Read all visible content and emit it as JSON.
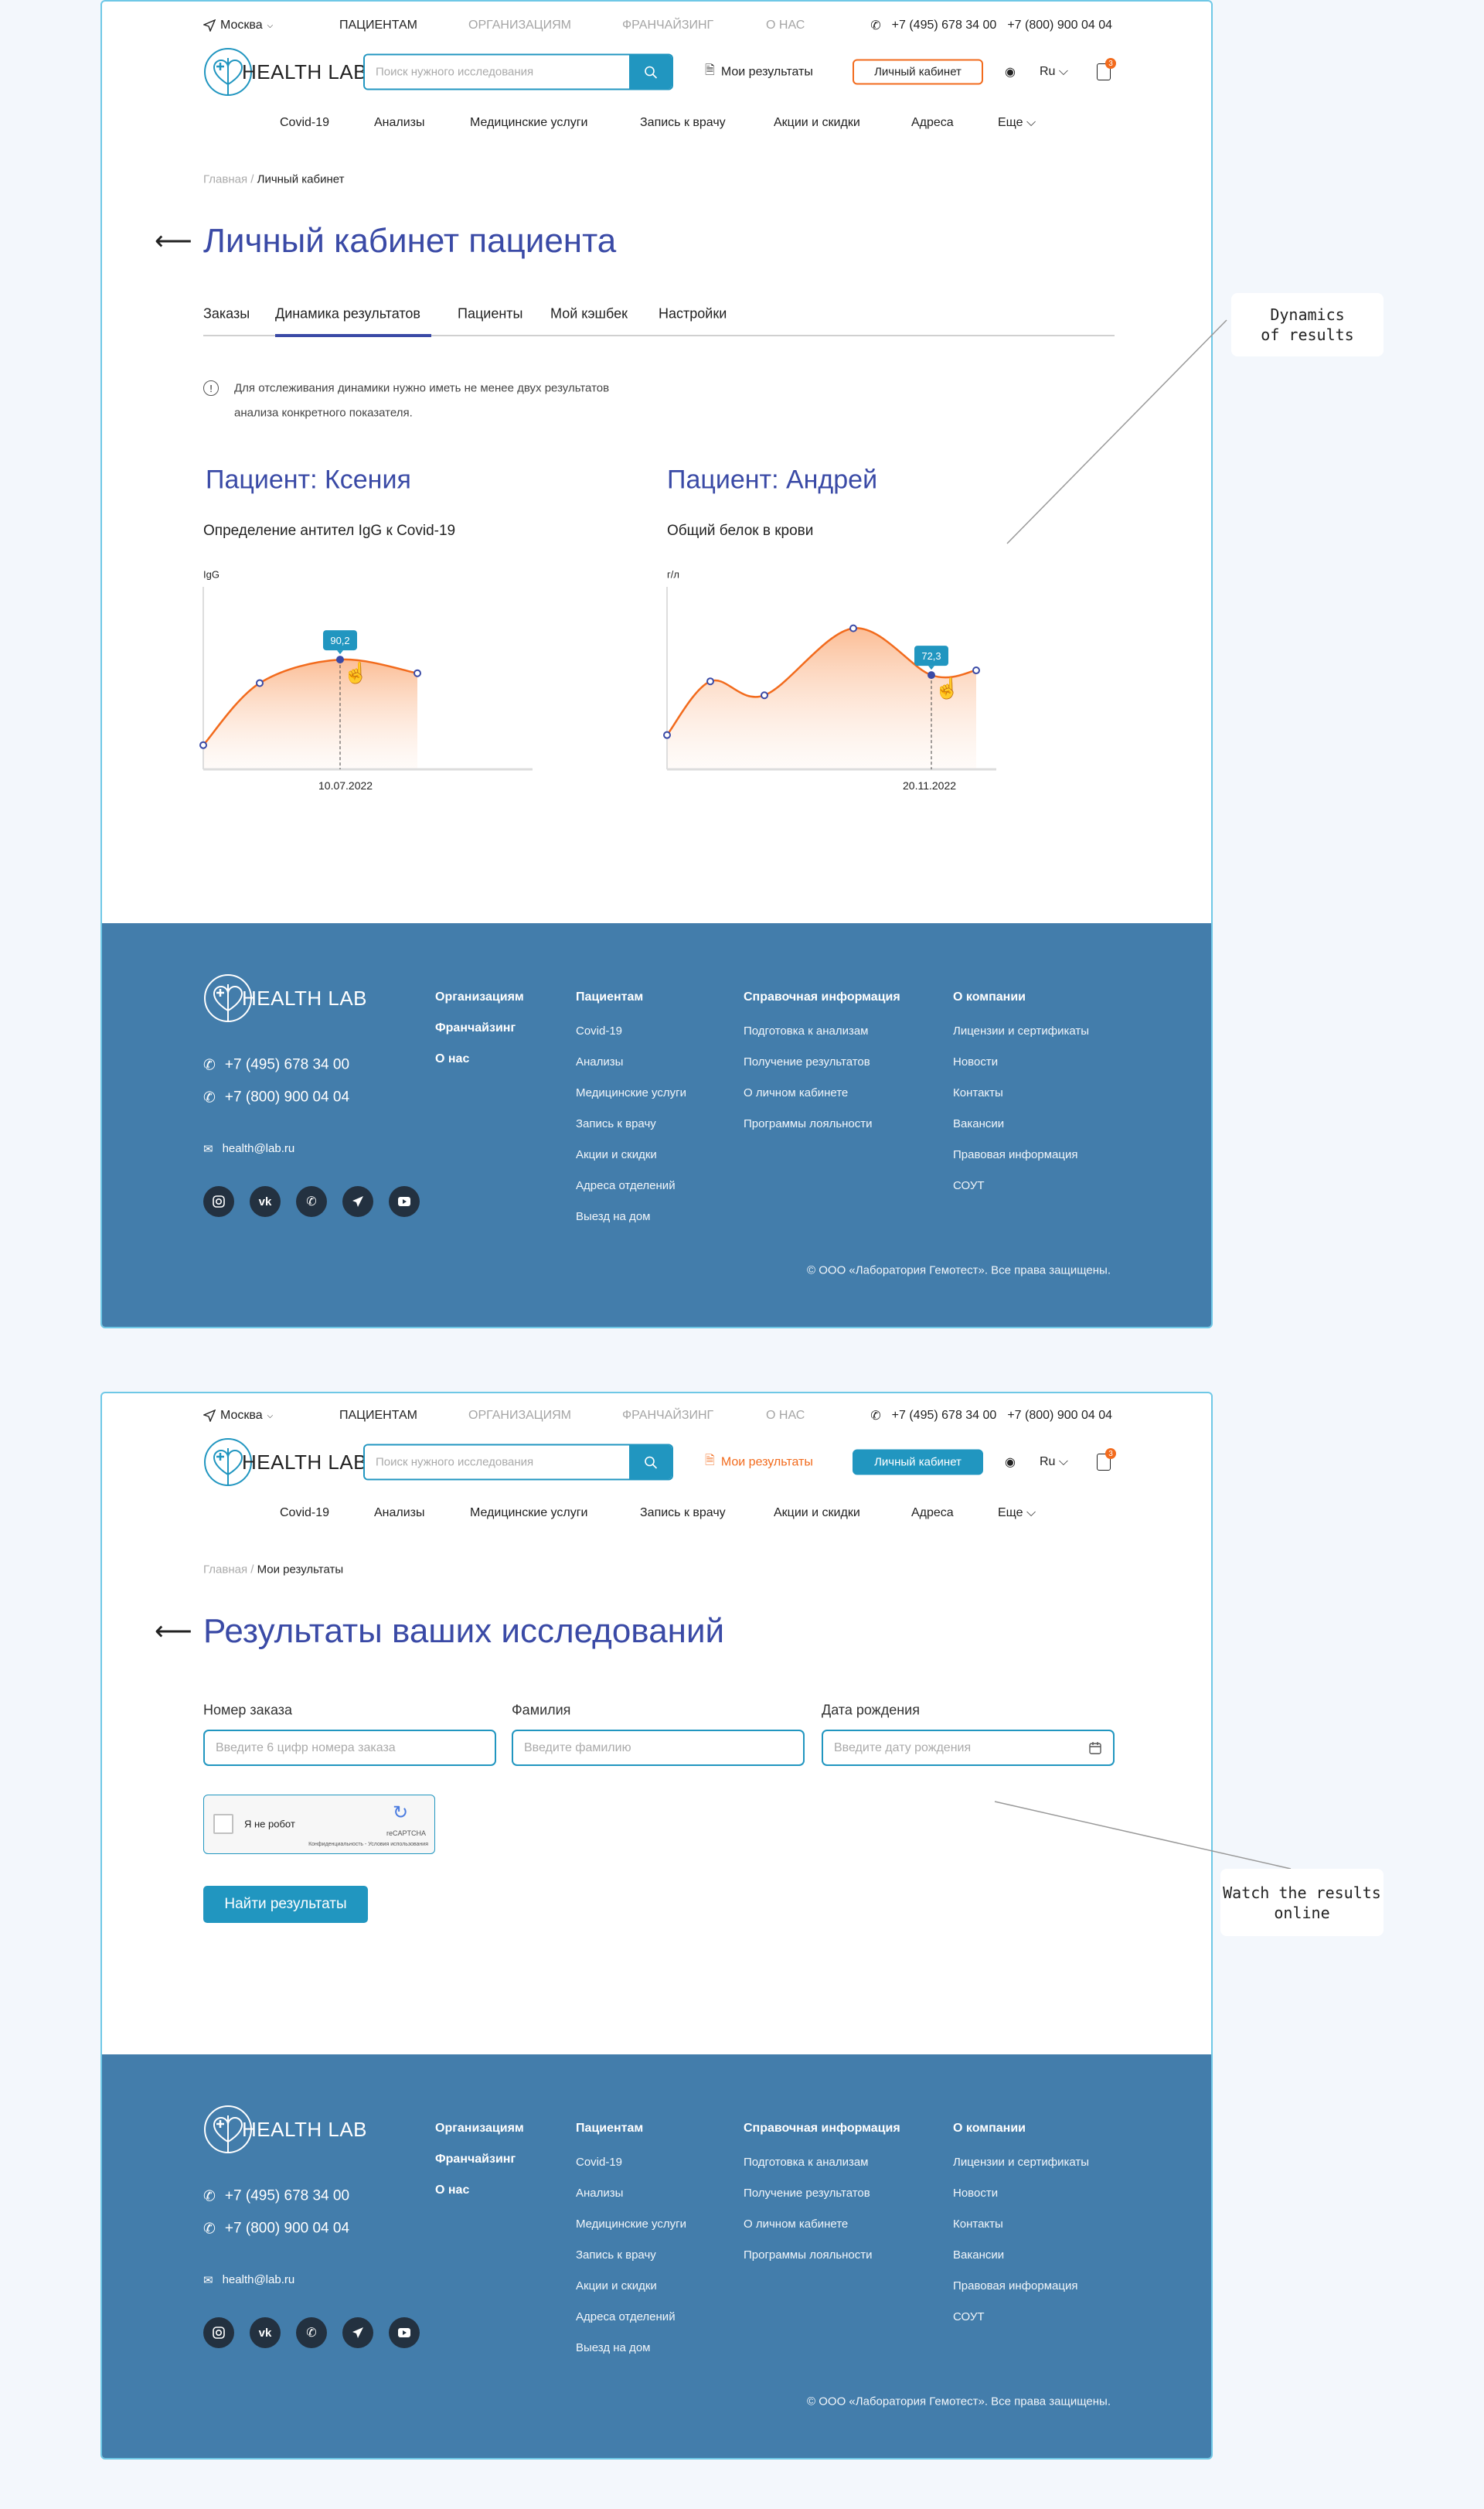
{
  "header": {
    "city": "Москва",
    "top_links": [
      "ПАЦИЕНТАМ",
      "ОРГАНИЗАЦИЯМ",
      "ФРАНЧАЙЗИНГ",
      "О НАС"
    ],
    "phone1": "+7 (495) 678 34 00",
    "phone2": "+7 (800) 900 04 04",
    "logo": "HEALTH LAB",
    "search_placeholder": "Поиск нужного исследования",
    "my_results": "Мои результаты",
    "cabinet": "Личный кабинет",
    "lang": "Ru",
    "cart_count": "3",
    "nav": [
      "Covid-19",
      "Анализы",
      "Медицинские услуги",
      "Запись к врачу",
      "Акции и скидки",
      "Адреса",
      "Еще"
    ]
  },
  "page1": {
    "breadcrumb_home": "Главная",
    "breadcrumb_sep": "/",
    "breadcrumb_current": "Личный кабинет",
    "title": "Личный кабинет пациента",
    "tabs": [
      "Заказы",
      "Динамика результатов",
      "Пациенты",
      "Мой кэшбек",
      "Настройки"
    ],
    "active_tab": "Динамика результатов",
    "info_line1": "Для отслеживания динамики нужно иметь не менее двух результатов",
    "info_line2": "анализа конкретного показателя.",
    "patients": [
      {
        "title": "Пациент: Ксения",
        "test": "Определение антител IgG к Covid-19"
      },
      {
        "title": "Пациент: Андрей",
        "test": "Общий белок в крови"
      }
    ]
  },
  "chart_data": [
    {
      "type": "area",
      "ylabel": "IgG",
      "values": [
        19.9,
        70.9,
        90.2,
        79.0
      ],
      "highlight_index": 2,
      "highlight_label": "90,2",
      "highlight_date": "10.07.2022",
      "ylim": [
        0,
        150
      ],
      "grid": false,
      "color": "#f26b1d"
    },
    {
      "type": "area",
      "ylabel": "г/л",
      "values": [
        26.3,
        67.5,
        56.8,
        108.2,
        72.3,
        75.9
      ],
      "highlight_index": 4,
      "highlight_label": "72,3",
      "highlight_date": "20.11.2022",
      "ylim": [
        0,
        140
      ],
      "grid": false,
      "color": "#f26b1d"
    }
  ],
  "page2": {
    "breadcrumb_home": "Главная",
    "breadcrumb_sep": "/",
    "breadcrumb_current": "Мои результаты",
    "title": "Результаты ваших исследований",
    "fields": [
      {
        "label": "Номер заказа",
        "placeholder": "Введите 6 цифр номера заказа"
      },
      {
        "label": "Фамилия",
        "placeholder": "Введите фамилию"
      },
      {
        "label": "Дата рождения",
        "placeholder": "Введите дату рождения"
      }
    ],
    "captcha_label": "Я не робот",
    "captcha_brand": "reCAPTCHA",
    "captcha_terms": "Конфиденциальность - Условия использования",
    "submit": "Найти результаты"
  },
  "footer": {
    "logo": "HEALTH LAB",
    "phone1": "+7 (495) 678 34 00",
    "phone2": "+7 (800) 900 04 04",
    "email": "health@lab.ru",
    "main_links": [
      "Организациям",
      "Франчайзинг",
      "О нас"
    ],
    "patients_title": "Пациентам",
    "patients_links": [
      "Covid-19",
      "Анализы",
      "Медицинские услуги",
      "Запись к врачу",
      "Акции и скидки",
      "Адреса отделений",
      "Выезд на дом"
    ],
    "info_title": "Справочная информация",
    "info_links": [
      "Подготовка к анализам",
      "Получение результатов",
      "О личном кабинете",
      "Программы лояльности"
    ],
    "company_title": "О компании",
    "company_links": [
      "Лицензии и сертификаты",
      "Новости",
      "Контакты",
      "Вакансии",
      "Правовая информация",
      "СОУТ"
    ],
    "social": [
      "instagram-icon",
      "vk-icon",
      "whatsapp-icon",
      "telegram-icon",
      "youtube-icon"
    ],
    "copyright": "© ООО «Лаборатория Гемотест». Все права защищены."
  },
  "annotations": {
    "dynamics": "Dynamics\nof results",
    "watch": "Watch the results\nonline"
  },
  "colors": {
    "brand": "#3a4aa6",
    "accent": "#2196c0",
    "orange": "#f26b1d",
    "footer": "#437dab"
  }
}
